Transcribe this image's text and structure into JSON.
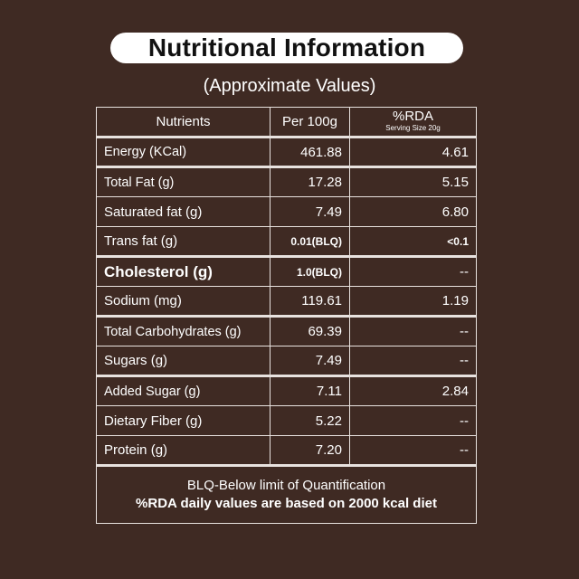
{
  "title": "Nutritional Information",
  "subtitle": "(Approximate Values)",
  "headers": {
    "nutrients": "Nutrients",
    "per100g": "Per 100g",
    "rda": "%RDA",
    "serving": "Serving Size 20g"
  },
  "rows": [
    {
      "name": "Energy (KCal)",
      "per100g": "461.88",
      "rda": "4.61"
    },
    {
      "name": "Total Fat (g)",
      "per100g": "17.28",
      "rda": "5.15"
    },
    {
      "name": "Saturated fat (g)",
      "per100g": "7.49",
      "rda": "6.80"
    },
    {
      "name": "Trans fat (g)",
      "per100g": "0.01(BLQ)",
      "rda": "<0.1"
    },
    {
      "name": "Cholesterol (g)",
      "per100g": "1.0(BLQ)",
      "rda": "--"
    },
    {
      "name": "Sodium (mg)",
      "per100g": "119.61",
      "rda": "1.19"
    },
    {
      "name": "Total Carbohydrates (g)",
      "per100g": "69.39",
      "rda": "--"
    },
    {
      "name": "Sugars (g)",
      "per100g": "7.49",
      "rda": "--"
    },
    {
      "name": "Added Sugar (g)",
      "per100g": "7.11",
      "rda": "2.84"
    },
    {
      "name": "Dietary Fiber (g)",
      "per100g": "5.22",
      "rda": "--"
    },
    {
      "name": "Protein (g)",
      "per100g": "7.20",
      "rda": "--"
    }
  ],
  "footer": {
    "line1": "BLQ-Below limit of Quantification",
    "line2": "%RDA daily values are based on 2000 kcal diet"
  },
  "colors": {
    "background": "#3f2a23",
    "text": "#ffffff",
    "title_pill": "#ffffff",
    "title_text": "#111111"
  }
}
